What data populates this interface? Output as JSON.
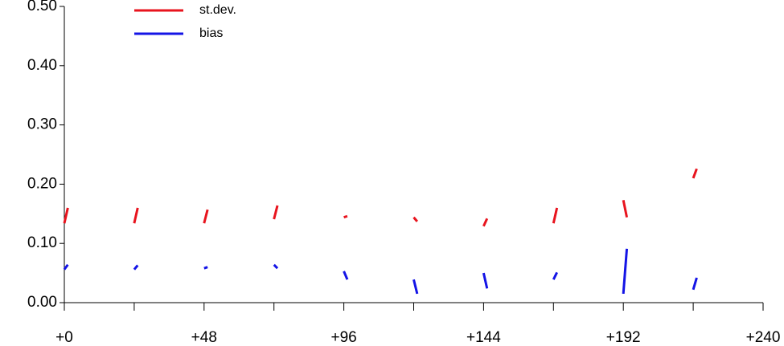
{
  "chart_data": {
    "type": "line",
    "x": [
      0,
      1.2,
      12,
      24,
      25.2,
      36,
      48,
      49.2,
      60,
      72,
      73.2,
      84,
      96,
      97.2,
      108,
      120,
      121.2,
      132,
      144,
      145.2,
      156,
      168,
      169.2,
      180,
      192,
      193.2,
      204,
      216,
      217.2,
      228
    ],
    "series": [
      {
        "name": "st.dev.",
        "color": "#e8141e",
        "values": [
          0.134,
          0.16,
          null,
          0.134,
          0.16,
          null,
          0.134,
          0.157,
          null,
          0.141,
          0.164,
          null,
          0.144,
          0.146,
          null,
          0.144,
          0.137,
          null,
          0.129,
          0.142,
          null,
          0.134,
          0.16,
          null,
          0.173,
          0.144,
          null,
          0.21,
          0.226,
          null
        ]
      },
      {
        "name": "bias",
        "color": "#1414e6",
        "values": [
          0.056,
          0.064,
          null,
          0.056,
          0.063,
          null,
          0.058,
          0.06,
          null,
          0.064,
          0.058,
          null,
          0.053,
          0.039,
          null,
          0.039,
          0.015,
          null,
          0.05,
          0.024,
          null,
          0.039,
          0.051,
          null,
          0.015,
          0.091,
          null,
          0.022,
          0.042,
          null
        ]
      }
    ],
    "xlim": [
      0,
      240
    ],
    "xticks": [
      {
        "value": 0,
        "label": "+0"
      },
      {
        "value": 48,
        "label": "+48"
      },
      {
        "value": 96,
        "label": "+96"
      },
      {
        "value": 144,
        "label": "+144"
      },
      {
        "value": 192,
        "label": "+192"
      },
      {
        "value": 240,
        "label": "+240"
      }
    ],
    "xminorticks": [
      24,
      72,
      120,
      168,
      216
    ],
    "ylim": [
      0,
      0.5
    ],
    "yticks": [
      {
        "value": 0,
        "label": "0.00"
      },
      {
        "value": 0.1,
        "label": "0.10"
      },
      {
        "value": 0.2,
        "label": "0.20"
      },
      {
        "value": 0.3,
        "label": "0.30"
      },
      {
        "value": 0.4,
        "label": "0.40"
      },
      {
        "value": 0.5,
        "label": "0.50"
      }
    ],
    "legend": "upper-left"
  }
}
